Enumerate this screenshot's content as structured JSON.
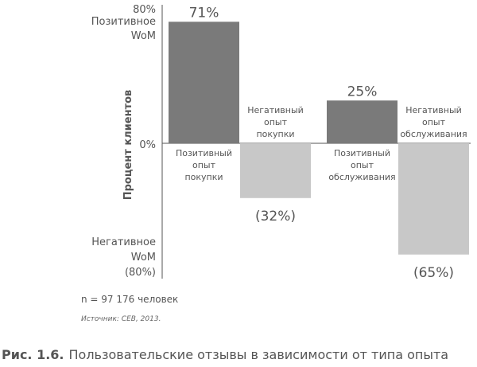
{
  "chart_data": {
    "type": "bar",
    "ylabel": "Процент клиентов",
    "ylim": [
      -80,
      80
    ],
    "y_ticks": [
      {
        "value": 80,
        "label": "80%"
      },
      {
        "value": 0,
        "label": "0%"
      }
    ],
    "axis_annotations": {
      "top": [
        "Позитивное",
        "WoM"
      ],
      "bottom": [
        "Негативное",
        "WoM",
        "(80%)"
      ]
    },
    "bars": [
      {
        "label_lines": [
          "Позитивный",
          "опыт",
          "покупки"
        ],
        "value": 71,
        "value_label": "71%",
        "color": "#7a7a7a"
      },
      {
        "label_lines": [
          "Негативный",
          "опыт",
          "покупки"
        ],
        "value": -32,
        "value_label": "(32%)",
        "color": "#c8c8c8"
      },
      {
        "label_lines": [
          "Позитивный",
          "опыт",
          "обслуживания"
        ],
        "value": 25,
        "value_label": "25%",
        "color": "#7a7a7a"
      },
      {
        "label_lines": [
          "Негативный",
          "опыт",
          "обслуживания"
        ],
        "value": -65,
        "value_label": "(65%)",
        "color": "#c8c8c8"
      }
    ]
  },
  "notes": {
    "n": "n = 97 176 человек",
    "source": "Источник: CEB, 2013."
  },
  "caption": {
    "number": "Рис. 1.6.",
    "text": "Пользовательские отзывы в зависимости от типа опыта"
  }
}
